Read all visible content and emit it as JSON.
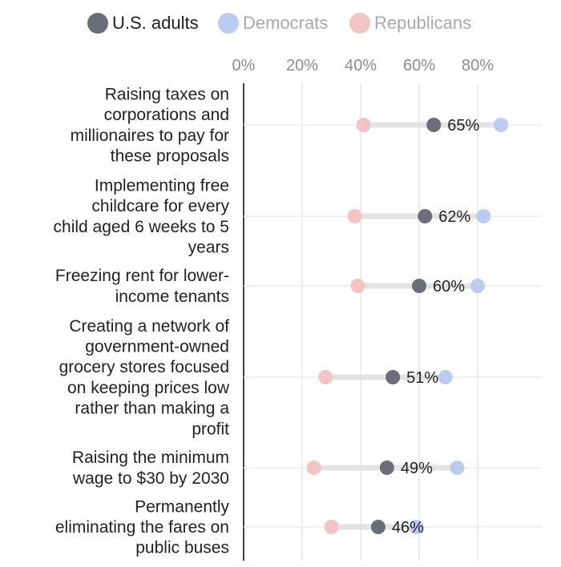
{
  "chart_data": {
    "type": "dot",
    "x_ticks": [
      "0%",
      "20%",
      "40%",
      "60%",
      "80%"
    ],
    "xlim": [
      0,
      100
    ],
    "grid": true,
    "legend_position": "top",
    "series": [
      {
        "name": "U.S. adults",
        "color": "#6b6e78",
        "values": [
          65,
          62,
          60,
          51,
          49,
          46
        ]
      },
      {
        "name": "Democrats",
        "color": "#bccbee",
        "values": [
          88,
          82,
          80,
          69,
          73,
          59
        ]
      },
      {
        "name": "Republicans",
        "color": "#f2c4c4",
        "values": [
          41,
          38,
          39,
          28,
          24,
          30
        ]
      }
    ],
    "categories": [
      {
        "lines": [
          "Raising taxes on",
          "corporations and",
          "millionaires to pay for",
          "these proposals"
        ]
      },
      {
        "lines": [
          "Implementing free",
          "childcare for every",
          "child aged 6 weeks to 5",
          "years"
        ]
      },
      {
        "lines": [
          "Freezing rent for lower-",
          "income tenants"
        ]
      },
      {
        "lines": [
          "Creating a network of",
          "government-owned",
          "grocery stores focused",
          "on keeping prices low",
          "rather than making a",
          "profit"
        ]
      },
      {
        "lines": [
          "Raising the minimum",
          "wage to $30 by 2030"
        ]
      },
      {
        "lines": [
          "Permanently",
          "eliminating the fares on",
          "public buses"
        ]
      }
    ],
    "data_labels": [
      "65%",
      "62%",
      "60%",
      "51%",
      "49%",
      "46%"
    ]
  }
}
